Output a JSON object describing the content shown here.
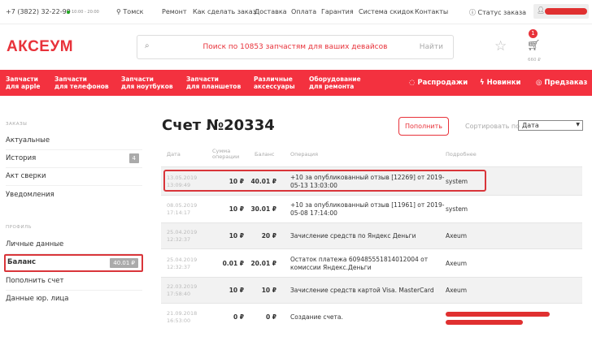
{
  "topbar": {
    "phone": "+7 (3822) 32-22-99",
    "hours": "10:00 - 20:00",
    "city": "Томск",
    "links": [
      "Ремонт",
      "Как сделать заказ",
      "Доставка",
      "Оплата",
      "Гарантия",
      "Система скидок",
      "Контакты"
    ],
    "order_status": "Статус заказа"
  },
  "header": {
    "logo": "АКСЕУМ",
    "search_placeholder": "Поиск по 10853 запчастям для ваших девайсов",
    "search_button": "Найти",
    "cart_count": "1",
    "cart_total": "660 ₽"
  },
  "nav": {
    "items": [
      [
        "Запчасти",
        "для apple"
      ],
      [
        "Запчасти",
        "для телефонов"
      ],
      [
        "Запчасти",
        "для ноутбуков"
      ],
      [
        "Запчасти",
        "для планшетов"
      ],
      [
        "Различные",
        "аксессуары"
      ],
      [
        "Оборудование",
        "для ремонта"
      ]
    ],
    "right": [
      "Распродажи",
      "Новинки",
      "Предзаказ"
    ]
  },
  "sidebar": {
    "orders_title": "ЗАКАЗЫ",
    "orders": [
      "Актуальные",
      "История",
      "Акт сверки",
      "Уведомления"
    ],
    "history_count": "4",
    "profile_title": "ПРОФИЛЬ",
    "profile": [
      "Личные данные",
      "Баланс",
      "Пополнить счет",
      "Данные юр. лица"
    ],
    "balance": "40.01 ₽"
  },
  "main": {
    "title": "Счет №20334",
    "topup": "Пополнить",
    "sort_label": "Сортировать по",
    "sort_value": "Дата",
    "columns": [
      "Дата",
      "Сумма",
      "операции",
      "Баланс",
      "Операция",
      "Подробнее"
    ],
    "rows": [
      {
        "date": "13.05.2019",
        "time": "13:09:49",
        "sum": "10 ₽",
        "balance": "40.01 ₽",
        "op": "+10 за опубликованный отзыв [12269] от 2019-05-13 13:03:00",
        "details": "system"
      },
      {
        "date": "08.05.2019",
        "time": "17:14:17",
        "sum": "10 ₽",
        "balance": "30.01 ₽",
        "op": "+10 за опубликованный отзыв [11961] от 2019-05-08 17:14:00",
        "details": "system"
      },
      {
        "date": "25.04.2019",
        "time": "12:32:37",
        "sum": "10 ₽",
        "balance": "20 ₽",
        "op": "Зачисление средств по Яндекс Деньги",
        "details": "Axeum"
      },
      {
        "date": "25.04.2019",
        "time": "12:32:37",
        "sum": "0.01 ₽",
        "balance": "20.01 ₽",
        "op": "Остаток платежа 609485551814012004 от комиссии Яндекс.Деньги",
        "details": "Axeum"
      },
      {
        "date": "22.03.2019",
        "time": "17:58:40",
        "sum": "10 ₽",
        "balance": "10 ₽",
        "op": "Зачисление средств картой Visa. MasterCard",
        "details": "Axeum"
      },
      {
        "date": "21.09.2018",
        "time": "16:53:00",
        "sum": "0 ₽",
        "balance": "0 ₽",
        "op": "Создание счета.",
        "details": ""
      }
    ]
  },
  "colors": {
    "accent": "#f3313f",
    "highlight": "#d9353a"
  }
}
